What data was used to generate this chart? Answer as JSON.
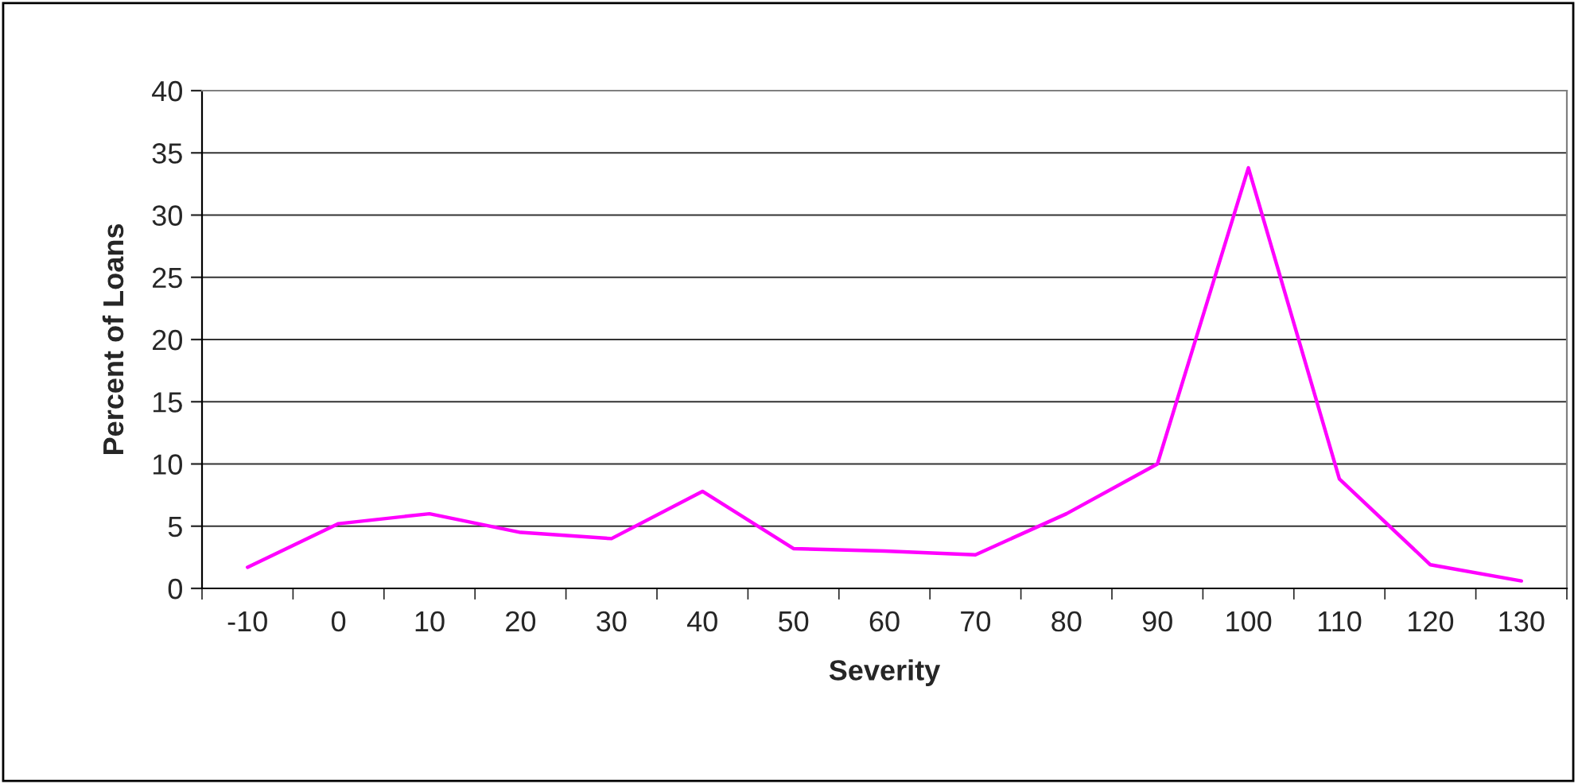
{
  "chart_data": {
    "type": "line",
    "xlabel": "Severity",
    "ylabel": "Percent of Loans",
    "categories": [
      "-10",
      "0",
      "10",
      "20",
      "30",
      "40",
      "50",
      "60",
      "70",
      "80",
      "90",
      "100",
      "110",
      "120",
      "130"
    ],
    "series": [
      {
        "color": "#ff00ff",
        "values": [
          1.7,
          5.2,
          6.0,
          4.5,
          4.0,
          7.8,
          3.2,
          3.0,
          2.7,
          6.0,
          10.0,
          33.8,
          8.8,
          1.9,
          0.6
        ]
      }
    ],
    "ylim": [
      0,
      40
    ],
    "yticks": [
      0,
      5,
      10,
      15,
      20,
      25,
      30,
      35,
      40
    ],
    "grid": "y",
    "legend": false,
    "marker": "none",
    "line_style": "solid"
  }
}
